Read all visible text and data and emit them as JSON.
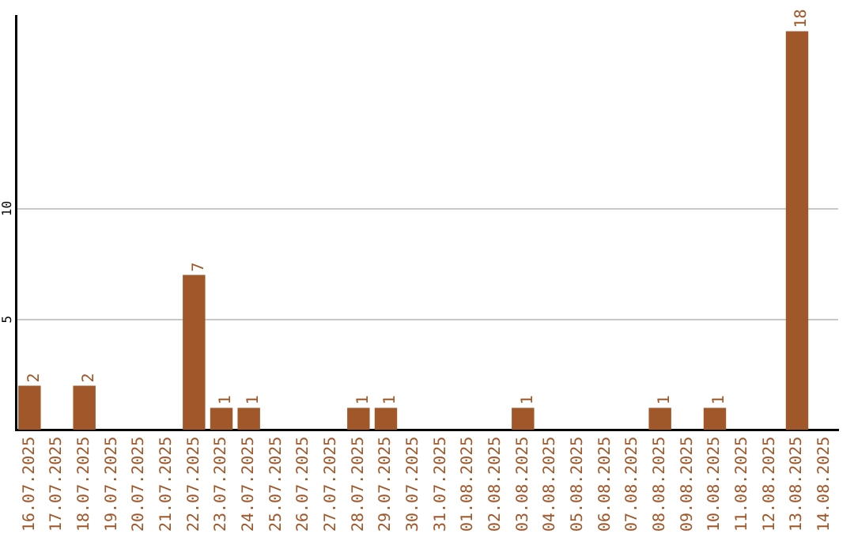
{
  "chart_data": {
    "type": "bar",
    "categories": [
      "16.07.2025",
      "17.07.2025",
      "18.07.2025",
      "19.07.2025",
      "20.07.2025",
      "21.07.2025",
      "22.07.2025",
      "23.07.2025",
      "24.07.2025",
      "25.07.2025",
      "26.07.2025",
      "27.07.2025",
      "28.07.2025",
      "29.07.2025",
      "30.07.2025",
      "31.07.2025",
      "01.08.2025",
      "02.08.2025",
      "03.08.2025",
      "04.08.2025",
      "05.08.2025",
      "06.08.2025",
      "07.08.2025",
      "08.08.2025",
      "09.08.2025",
      "10.08.2025",
      "11.08.2025",
      "12.08.2025",
      "13.08.2025",
      "14.08.2025"
    ],
    "values": [
      2,
      0,
      2,
      0,
      0,
      0,
      7,
      1,
      1,
      0,
      0,
      0,
      1,
      1,
      0,
      0,
      0,
      0,
      1,
      0,
      0,
      0,
      0,
      1,
      0,
      1,
      0,
      0,
      18,
      0
    ],
    "value_labels": [
      "2",
      null,
      "2",
      null,
      null,
      null,
      "7",
      "1",
      "1",
      null,
      null,
      null,
      "1",
      "1",
      null,
      null,
      null,
      null,
      "1",
      null,
      null,
      null,
      null,
      "1",
      null,
      "1",
      null,
      null,
      "18",
      null
    ],
    "color": "#a0572a",
    "ylim": [
      0,
      18.7
    ],
    "yticks": [
      5,
      10
    ],
    "grid": "y",
    "legend": false
  }
}
